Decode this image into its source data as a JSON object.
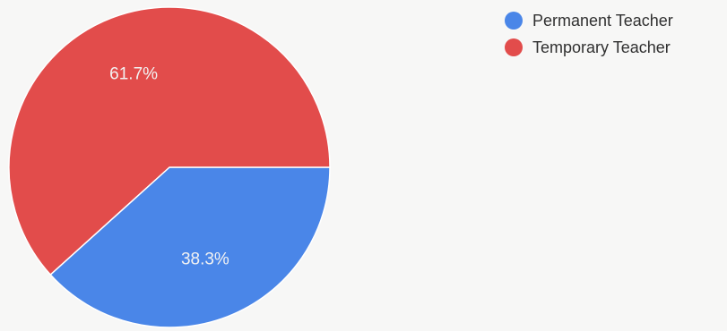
{
  "chart_data": {
    "type": "pie",
    "title": "",
    "legend_position": "top-right",
    "slices": [
      {
        "name": "Permanent Teacher",
        "value": 38.3,
        "label": "38.3%",
        "color": "#4a86e8"
      },
      {
        "name": "Temporary Teacher",
        "value": 61.7,
        "label": "61.7%",
        "color": "#e24c4b"
      }
    ]
  }
}
